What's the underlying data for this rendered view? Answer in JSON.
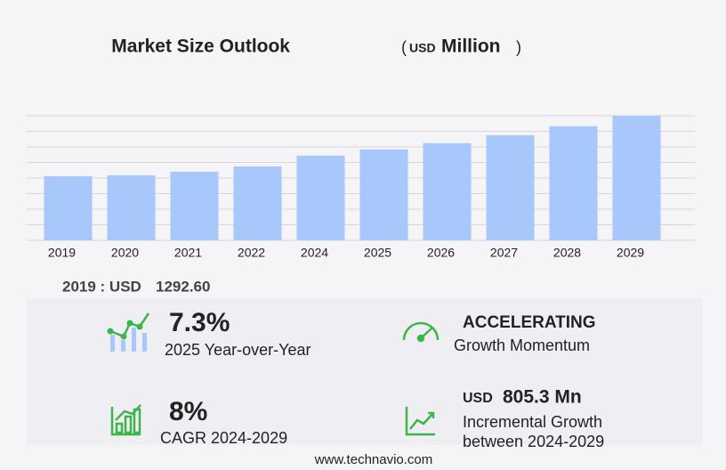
{
  "chart_data": {
    "type": "bar",
    "title": "Market Size Outlook",
    "unit_parts": [
      "(",
      "USD",
      "Million",
      ")"
    ],
    "categories": [
      "2019",
      "2020",
      "2021",
      "2022",
      "2024",
      "2025",
      "2026",
      "2027",
      "2028",
      "2029"
    ],
    "values": [
      1292.6,
      1310,
      1382,
      1490,
      1705,
      1831,
      1957,
      2118,
      2298,
      2510.3
    ],
    "color": "#a8c8fb",
    "ylim": [
      0,
      2510.3
    ],
    "grid": true
  },
  "summary": {
    "base_label": "2019 : USD",
    "base_value": "1292.60"
  },
  "stats": [
    {
      "value": "7.3%",
      "label": "2025 Year-over-Year"
    },
    {
      "value": "ACCELERATING",
      "label": "Growth Momentum"
    },
    {
      "value": "8%",
      "label": "CAGR 2024-2029"
    },
    {
      "value_prefix": "USD",
      "value": "805.3 Mn",
      "label": "Incremental Growth",
      "label2": "between 2024-2029"
    }
  ],
  "footer": "www.technavio.com"
}
